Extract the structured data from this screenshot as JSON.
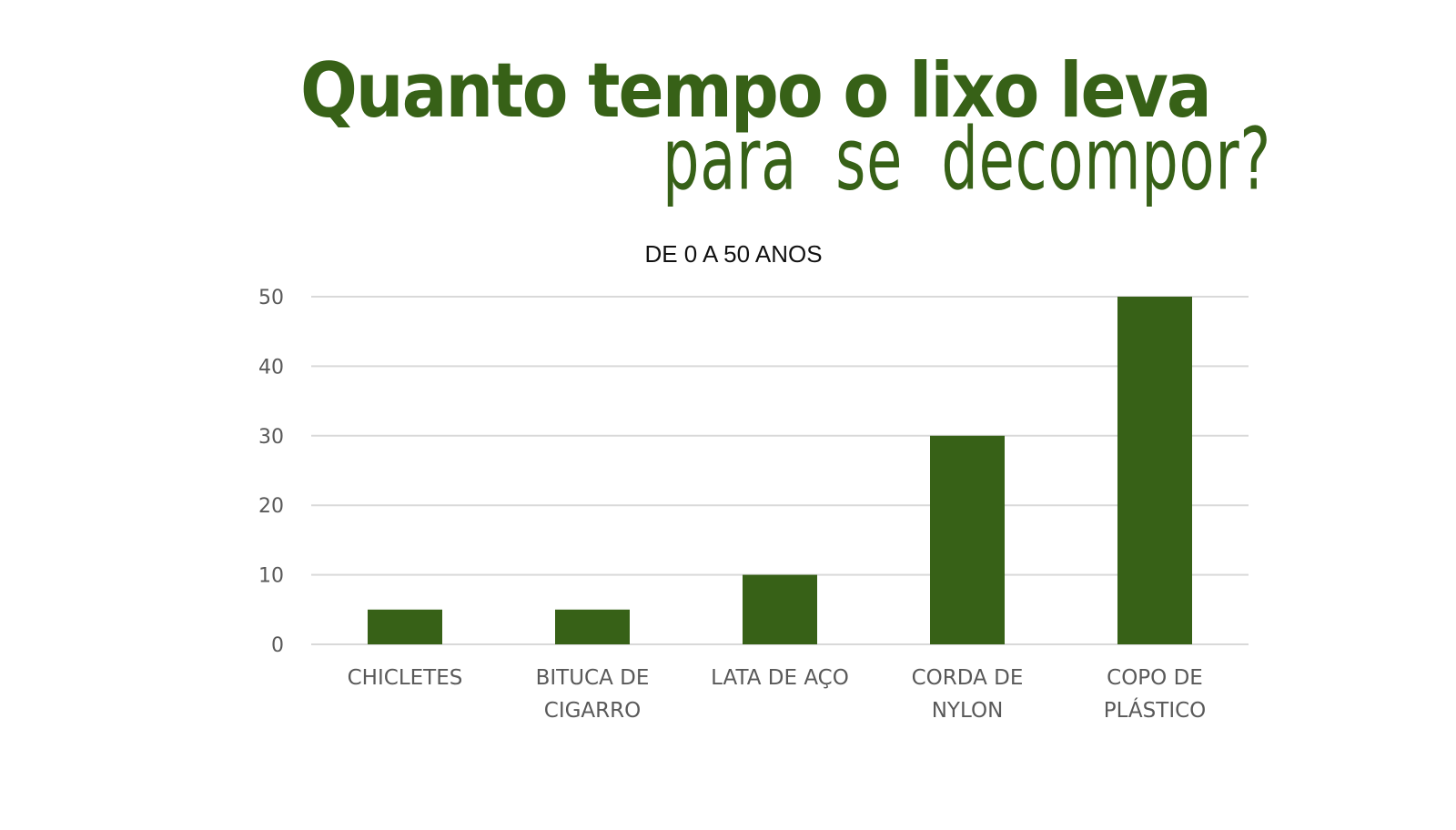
{
  "header": {
    "title_line1": "Quanto tempo o lixo leva",
    "title_line2": "para  se  decompor?"
  },
  "colors": {
    "title": "#376117",
    "bar": "#376117",
    "grid": "#d9d9d9",
    "tick_text": "#595959"
  },
  "chart_data": {
    "type": "bar",
    "title": "DE 0 A 50 ANOS",
    "categories": [
      [
        "CHICLETES"
      ],
      [
        "BITUCA DE",
        "CIGARRO"
      ],
      [
        "LATA DE AÇO"
      ],
      [
        "CORDA DE",
        "NYLON"
      ],
      [
        "COPO DE",
        "PLÁSTICO"
      ]
    ],
    "series": [
      {
        "values": [
          5,
          5,
          10,
          30,
          50
        ]
      }
    ],
    "ylim": [
      0,
      50
    ],
    "yticks": [
      0,
      10,
      20,
      30,
      40,
      50
    ],
    "xlabel": "",
    "ylabel": "",
    "grid": true,
    "legend": "none"
  }
}
